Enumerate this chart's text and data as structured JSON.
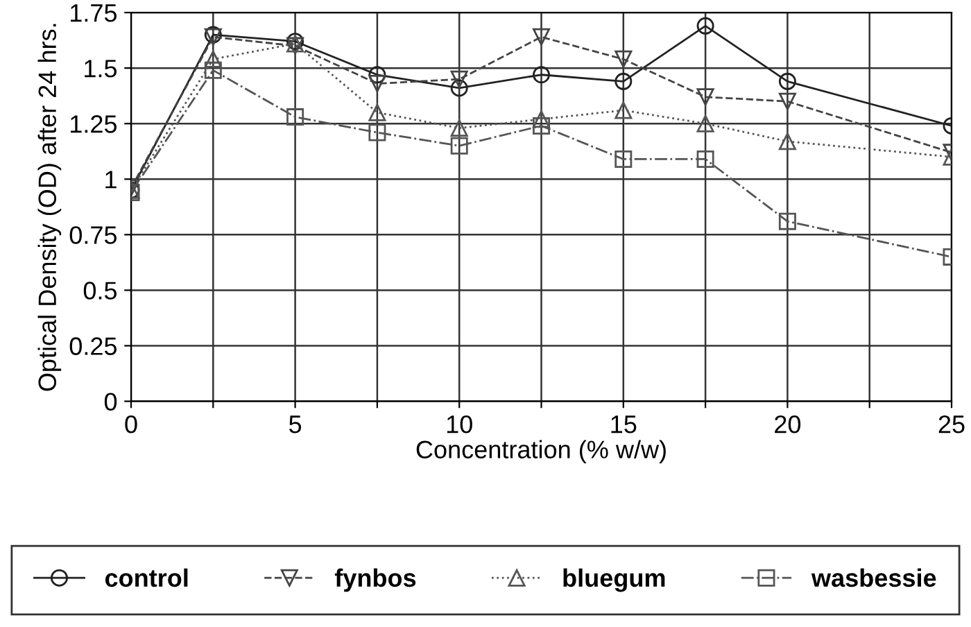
{
  "chart_data": {
    "type": "line",
    "xlabel": "Concentration (% w/w)",
    "ylabel": "Optical Density (OD) after 24 hrs.",
    "x": [
      0,
      2.5,
      5,
      7.5,
      10,
      12.5,
      15,
      17.5,
      20,
      25
    ],
    "series": [
      {
        "name": "control",
        "color": "#222222",
        "marker": "circle",
        "line_style": "solid",
        "values": [
          0.95,
          1.65,
          1.62,
          1.47,
          1.41,
          1.47,
          1.44,
          1.69,
          1.44,
          1.24
        ]
      },
      {
        "name": "fynbos",
        "color": "#444444",
        "marker": "triangle_down",
        "line_style": "dashed",
        "values": [
          0.96,
          1.64,
          1.6,
          1.43,
          1.45,
          1.64,
          1.54,
          1.37,
          1.35,
          1.12
        ]
      },
      {
        "name": "bluegum",
        "color": "#555555",
        "marker": "triangle",
        "line_style": "dotted",
        "values": [
          0.95,
          1.54,
          1.61,
          1.3,
          1.23,
          1.27,
          1.31,
          1.25,
          1.17,
          1.1
        ]
      },
      {
        "name": "wasbessie",
        "color": "#555555",
        "marker": "square",
        "line_style": "dashdot",
        "values": [
          0.94,
          1.49,
          1.28,
          1.21,
          1.15,
          1.24,
          1.09,
          1.09,
          0.81,
          0.65
        ]
      }
    ],
    "xlim": [
      0,
      25
    ],
    "xticks": [
      0,
      {
        "value": 2.5,
        "label": null
      },
      5,
      {
        "value": 7.5,
        "label": null
      },
      10,
      {
        "value": 12.5,
        "label": null
      },
      15,
      {
        "value": 17.5,
        "label": null
      },
      20,
      {
        "value": 22.5,
        "label": null
      },
      25
    ],
    "ylim": [
      0,
      1.75
    ],
    "yticks": [
      0,
      0.25,
      0.5,
      0.75,
      1,
      1.25,
      1.5,
      1.75
    ],
    "grid": true,
    "legend": "bottom"
  }
}
